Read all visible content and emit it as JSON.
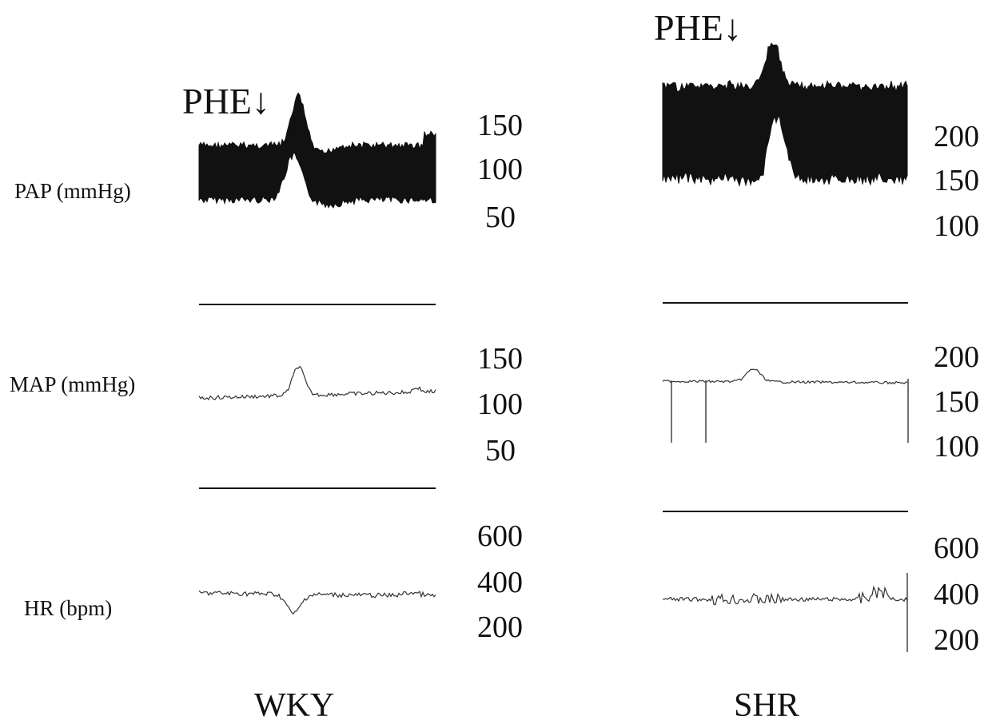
{
  "chart_data": {
    "type": "line",
    "channels": [
      {
        "key": "pap",
        "label": "PAP (mmHg)"
      },
      {
        "key": "map",
        "label": "MAP (mmHg)"
      },
      {
        "key": "hr",
        "label": "HR (bpm)"
      }
    ],
    "panels": [
      {
        "group": "WKY",
        "event_label": "PHE↓",
        "ticks": {
          "pap": [
            "150",
            "100",
            "50"
          ],
          "map": [
            "150",
            "100",
            "50"
          ],
          "hr": [
            "600",
            "400",
            "200"
          ]
        }
      },
      {
        "group": "SHR",
        "event_label": "PHE↓",
        "ticks": {
          "pap": [
            "200",
            "150",
            "100"
          ],
          "map": [
            "200",
            "150",
            "100"
          ],
          "hr": [
            "600",
            "400",
            "200"
          ]
        }
      }
    ]
  }
}
